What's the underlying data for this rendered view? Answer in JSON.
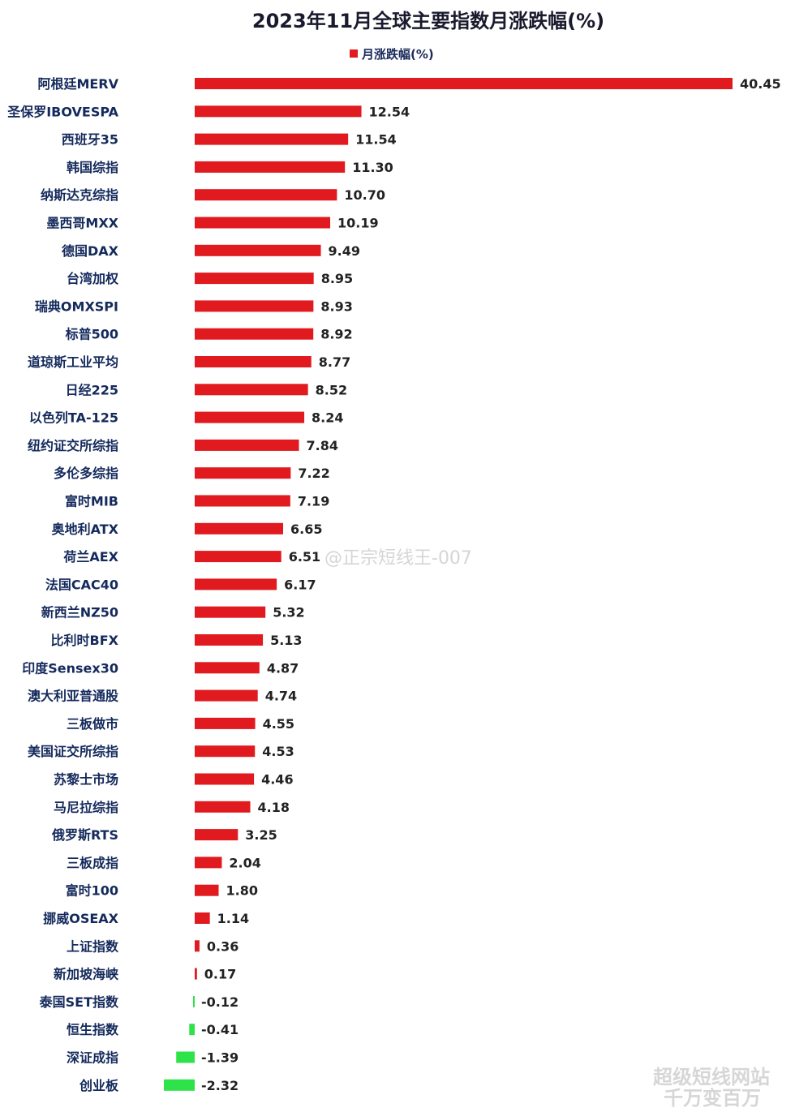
{
  "chart_data": {
    "type": "bar",
    "orientation": "horizontal",
    "title": "2023年11月全球主要指数月涨跌幅(%)",
    "legend": {
      "label": "月涨跌幅(%)",
      "position": "top-center"
    },
    "positive_color": "#e01a1f",
    "negative_color": "#2ee24a",
    "categories": [
      "阿根廷MERV",
      "圣保罗IBOVESPA",
      "西班牙35",
      "韩国综指",
      "纳斯达克综指",
      "墨西哥MXX",
      "德国DAX",
      "台湾加权",
      "瑞典OMXSPI",
      "标普500",
      "道琼斯工业平均",
      "日经225",
      "以色列TA-125",
      "纽约证交所综指",
      "多伦多综指",
      "富时MIB",
      "奥地利ATX",
      "荷兰AEX",
      "法国CAC40",
      "新西兰NZ50",
      "比利时BFX",
      "印度Sensex30",
      "澳大利亚普通股",
      "三板做市",
      "美国证交所综指",
      "苏黎士市场",
      "马尼拉综指",
      "俄罗斯RTS",
      "三板成指",
      "富时100",
      "挪威OSEAX",
      "上证指数",
      "新加坡海峡",
      "泰国SET指数",
      "恒生指数",
      "深证成指",
      "创业板"
    ],
    "values": [
      40.45,
      12.54,
      11.54,
      11.3,
      10.7,
      10.19,
      9.49,
      8.95,
      8.93,
      8.92,
      8.77,
      8.52,
      8.24,
      7.84,
      7.22,
      7.19,
      6.65,
      6.51,
      6.17,
      5.32,
      5.13,
      4.87,
      4.74,
      4.55,
      4.53,
      4.46,
      4.18,
      3.25,
      2.04,
      1.8,
      1.14,
      0.36,
      0.17,
      -0.12,
      -0.41,
      -1.39,
      -2.32
    ],
    "value_labels": [
      "40.45",
      "12.54",
      "11.54",
      "11.30",
      "10.70",
      "10.19",
      "9.49",
      "8.95",
      "8.93",
      "8.92",
      "8.77",
      "8.52",
      "8.24",
      "7.84",
      "7.22",
      "7.19",
      "6.65",
      "6.51",
      "6.17",
      "5.32",
      "5.13",
      "4.87",
      "4.74",
      "4.55",
      "4.53",
      "4.46",
      "4.18",
      "3.25",
      "2.04",
      "1.80",
      "1.14",
      "0.36",
      "0.17",
      "-0.12",
      "-0.41",
      "-1.39",
      "-2.32"
    ],
    "grid": false
  },
  "watermarks": {
    "center": "@正宗短线王-007",
    "corner_top": "超级短线网站",
    "corner_bottom": "千万变百万"
  }
}
